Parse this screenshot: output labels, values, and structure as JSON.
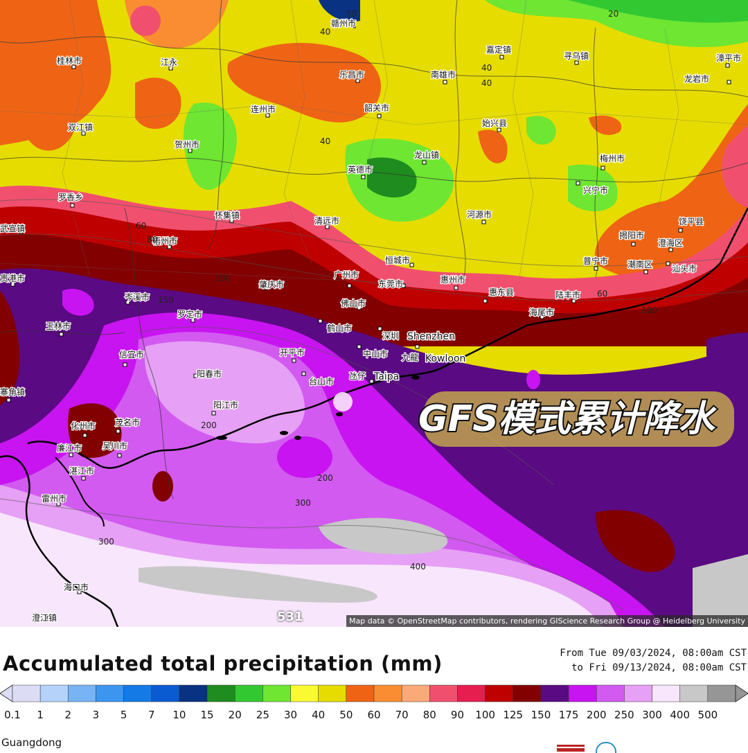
{
  "map": {
    "cities": [
      {
        "name": "赣州市"
      },
      {
        "name": "桂林市"
      },
      {
        "name": "江永"
      },
      {
        "name": "乐昌市"
      },
      {
        "name": "南雄市"
      },
      {
        "name": "嘉定镇"
      },
      {
        "name": "寻乌镇"
      },
      {
        "name": "漳平市"
      },
      {
        "name": "连州市"
      },
      {
        "name": "韶关市"
      },
      {
        "name": "双江镇"
      },
      {
        "name": "贺州市"
      },
      {
        "name": "始兴县"
      },
      {
        "name": "龙岩市"
      },
      {
        "name": "英德市"
      },
      {
        "name": "龙山镇"
      },
      {
        "name": "梅州市"
      },
      {
        "name": "兴宁市"
      },
      {
        "name": "罗香乡"
      },
      {
        "name": "怀集镇"
      },
      {
        "name": "清远市"
      },
      {
        "name": "河源市"
      },
      {
        "name": "饶平县"
      },
      {
        "name": "揭阳市"
      },
      {
        "name": "澄海区"
      },
      {
        "name": "汕头市"
      },
      {
        "name": "武宣镇"
      },
      {
        "name": "梧州市"
      },
      {
        "name": "恒城市"
      },
      {
        "name": "普宁市"
      },
      {
        "name": "潮南区"
      },
      {
        "name": "贵港市"
      },
      {
        "name": "肇庆市"
      },
      {
        "name": "广州市"
      },
      {
        "name": "东莞市"
      },
      {
        "name": "惠州市"
      },
      {
        "name": "惠东县"
      },
      {
        "name": "陆丰市"
      },
      {
        "name": "岑溪市"
      },
      {
        "name": "佛山市"
      },
      {
        "name": "海尾市"
      },
      {
        "name": "罗定市"
      },
      {
        "name": "玉林市"
      },
      {
        "name": "鹤山市"
      },
      {
        "name": "深圳"
      },
      {
        "name": "Shenzhen"
      },
      {
        "name": "中山市"
      },
      {
        "name": "九龍"
      },
      {
        "name": "Kowloon"
      },
      {
        "name": "开平市"
      },
      {
        "name": "信宜市"
      },
      {
        "name": "阳春市"
      },
      {
        "name": "台山市"
      },
      {
        "name": "氹仔"
      },
      {
        "name": "Taipa"
      },
      {
        "name": "寨角镇"
      },
      {
        "name": "阳江市"
      },
      {
        "name": "化州市"
      },
      {
        "name": "茂名市"
      },
      {
        "name": "廉江市"
      },
      {
        "name": "吴川市"
      },
      {
        "name": "湛江市"
      },
      {
        "name": "雷州市"
      },
      {
        "name": "海口市"
      },
      {
        "name": "澄江镇"
      }
    ],
    "contour_labels": [
      "40",
      "20",
      "40",
      "40",
      "40",
      "60",
      "80",
      "100",
      "150",
      "200",
      "200",
      "300",
      "300",
      "400",
      "100",
      "60",
      "10"
    ],
    "overlay_text": "GFS模式累计降水",
    "corner_number": "531",
    "attribution": "Map data © OpenStreetMap contributors, rendering GIScience Research Group @ Heidelberg University"
  },
  "legend": {
    "title": "Accumulated total precipitation (mm)",
    "date_from": "From Tue 09/03/2024, 08:00am CST",
    "date_to": "to Fri 09/13/2024, 08:00am CST",
    "ticks": [
      "0.1",
      "1",
      "2",
      "3",
      "5",
      "7",
      "10",
      "15",
      "20",
      "25",
      "30",
      "40",
      "50",
      "60",
      "70",
      "80",
      "90",
      "100",
      "125",
      "150",
      "175",
      "200",
      "250",
      "300",
      "400",
      "500"
    ],
    "colors": [
      "#dcdcf4",
      "#b4d2fa",
      "#78b4f5",
      "#3c96f0",
      "#147ae6",
      "#0a5ad2",
      "#0a3282",
      "#1e8c1e",
      "#32c832",
      "#6ee632",
      "#fafa32",
      "#e6dc00",
      "#ee6414",
      "#fa8c32",
      "#faaa78",
      "#f0506e",
      "#e61e50",
      "#be0000",
      "#820000",
      "#5a0a82",
      "#c814f0",
      "#d25af0",
      "#e6a0f5",
      "#f8e6fc",
      "#c8c8c8",
      "#969696"
    ],
    "region": "Guangdong"
  }
}
